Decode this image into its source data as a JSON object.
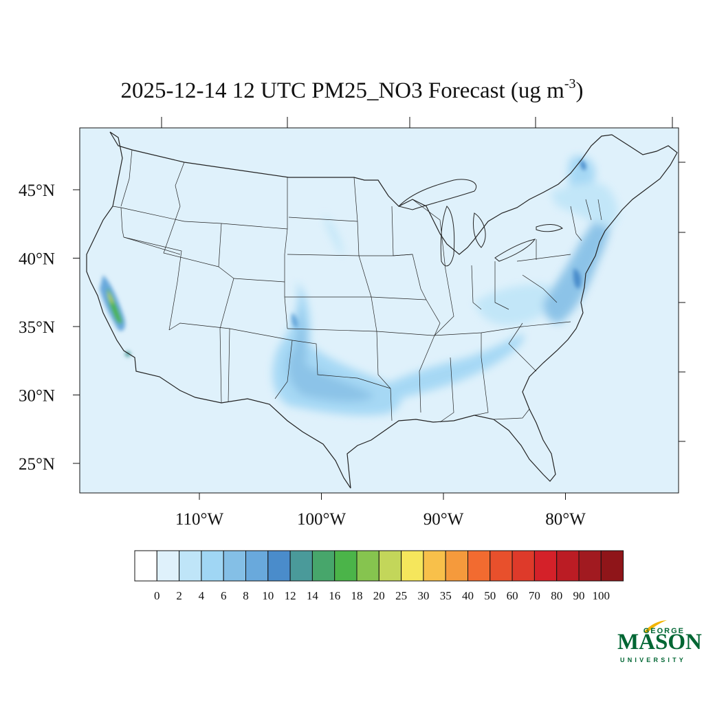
{
  "title": {
    "main": "2025-12-14 12 UTC PM25_NO3 Forecast (ug m",
    "superscript": "-3",
    "close": ")"
  },
  "map": {
    "background_color": "#dff1fb",
    "lat_labels": [
      {
        "lat": 45,
        "label": "45°N"
      },
      {
        "lat": 40,
        "label": "40°N"
      },
      {
        "lat": 35,
        "label": "35°N"
      },
      {
        "lat": 30,
        "label": "30°N"
      },
      {
        "lat": 25,
        "label": "25°N"
      }
    ],
    "lon_labels": [
      {
        "lon": -110,
        "label": "110°W"
      },
      {
        "lon": -100,
        "label": "100°W"
      },
      {
        "lon": -90,
        "label": "90°W"
      },
      {
        "lon": -80,
        "label": "80°W"
      }
    ]
  },
  "colorbar": {
    "labels": [
      "0",
      "2",
      "4",
      "6",
      "8",
      "10",
      "12",
      "14",
      "16",
      "18",
      "20",
      "25",
      "30",
      "35",
      "40",
      "50",
      "60",
      "70",
      "80",
      "90",
      "100"
    ],
    "colors": [
      "#ffffff",
      "#dff1fb",
      "#bfe5f8",
      "#a0d6f4",
      "#84bfe6",
      "#69a9dc",
      "#4a8ccb",
      "#4a9a9a",
      "#47a66b",
      "#4bb449",
      "#86c44f",
      "#c3d65a",
      "#f5e65c",
      "#f8c04a",
      "#f59a3c",
      "#f26b30",
      "#e8502c",
      "#de3a2a",
      "#d42129",
      "#bb1c24",
      "#a11a20",
      "#8f1519"
    ]
  },
  "logo": {
    "george": "GEORGE",
    "mason": "MASON",
    "university": "UNIVERSITY",
    "color": "#006633",
    "accent": "#f2b400"
  }
}
